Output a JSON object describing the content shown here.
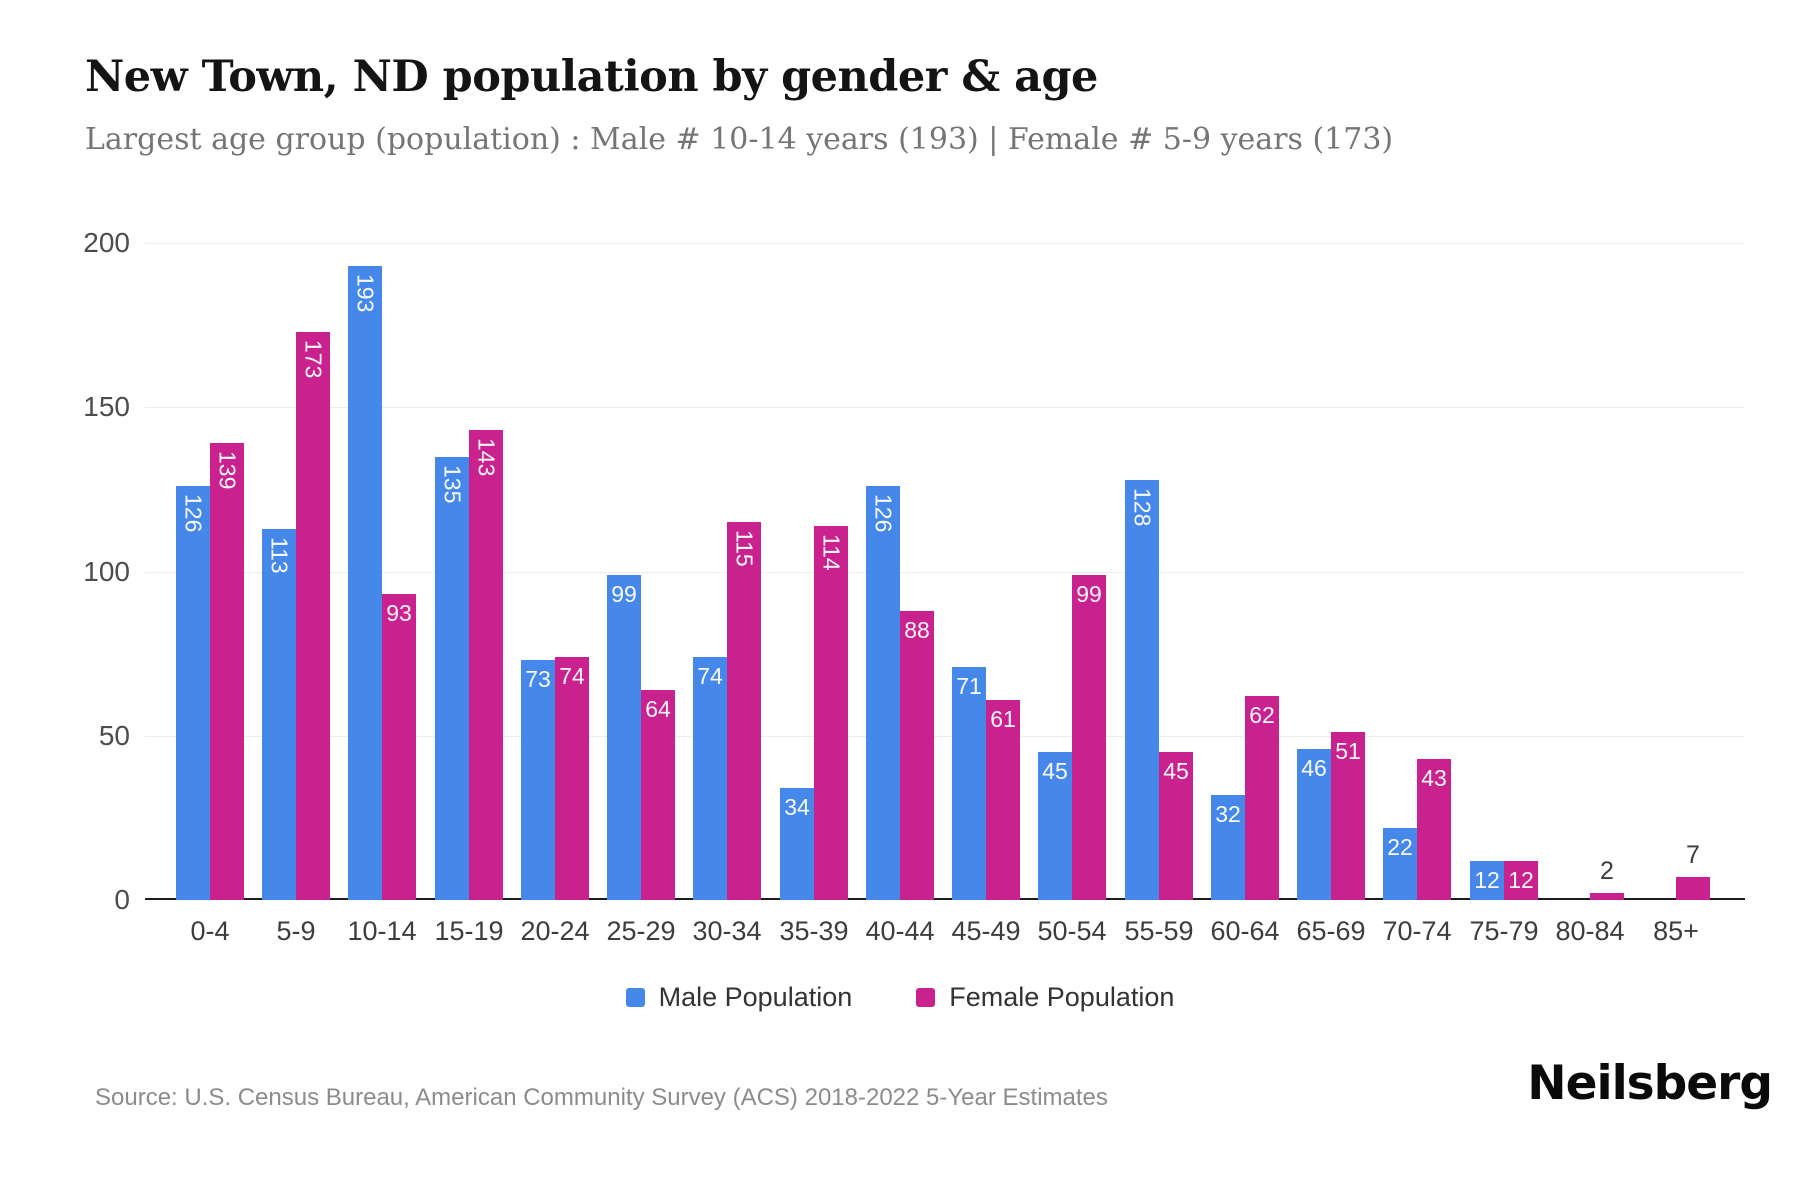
{
  "header": {
    "title": "New Town, ND population by gender & age",
    "subtitle": "Largest age group (population) : Male # 10-14 years (193) | Female # 5-9 years (173)"
  },
  "chart_data": {
    "type": "bar",
    "title": "New Town, ND population by gender & age",
    "categories": [
      "0-4",
      "5-9",
      "10-14",
      "15-19",
      "20-24",
      "25-29",
      "30-34",
      "35-39",
      "40-44",
      "45-49",
      "50-54",
      "55-59",
      "60-64",
      "65-69",
      "70-74",
      "75-79",
      "80-84",
      "85+"
    ],
    "series": [
      {
        "name": "Male Population",
        "color": "#4687ea",
        "values": [
          126,
          113,
          193,
          135,
          73,
          99,
          74,
          34,
          126,
          71,
          45,
          128,
          32,
          46,
          22,
          12,
          0,
          0
        ]
      },
      {
        "name": "Female Population",
        "color": "#c9218e",
        "values": [
          139,
          173,
          93,
          143,
          74,
          64,
          115,
          114,
          88,
          61,
          99,
          45,
          62,
          51,
          43,
          12,
          2,
          7
        ]
      }
    ],
    "xlabel": "",
    "ylabel": "",
    "ylim": [
      0,
      200
    ],
    "yticks": [
      0,
      50,
      100,
      150,
      200
    ],
    "grid": true,
    "legend_position": "bottom"
  },
  "footer": {
    "source": "Source: U.S. Census Bureau, American Community Survey (ACS) 2018-2022 5-Year Estimates",
    "brand": "Neilsberg"
  }
}
